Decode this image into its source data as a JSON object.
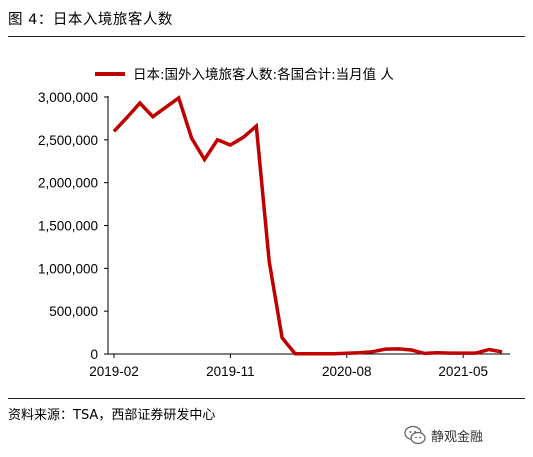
{
  "figure_title": "图 4：日本入境旅客人数",
  "source_note": "资料来源：TSA，西部证券研发中心",
  "watermark": {
    "text": "静观金融",
    "icon": "wechat-logo-icon"
  },
  "colors": {
    "series": "#C00000",
    "axis": "#000000"
  },
  "chart_data": {
    "type": "line",
    "title": "",
    "xlabel": "",
    "ylabel": "",
    "legend": "top",
    "grid": false,
    "ylim": [
      0,
      3000000
    ],
    "yticks": [
      0,
      500000,
      1000000,
      1500000,
      2000000,
      2500000,
      3000000
    ],
    "ytick_labels": [
      "0",
      "500,000",
      "1,000,000",
      "1,500,000",
      "2,000,000",
      "2,500,000",
      "3,000,000"
    ],
    "xtick_labels": [
      "2019-02",
      "2019-11",
      "2020-08",
      "2021-05"
    ],
    "xtick_positions": [
      "2019-02",
      "2019-11",
      "2020-08",
      "2021-05"
    ],
    "series": [
      {
        "name": "日本:国外入境旅客人数:各国合计:当月值 人",
        "x": [
          "2019-02",
          "2019-03",
          "2019-04",
          "2019-05",
          "2019-06",
          "2019-07",
          "2019-08",
          "2019-09",
          "2019-10",
          "2019-11",
          "2019-12",
          "2020-01",
          "2020-02",
          "2020-03",
          "2020-04",
          "2020-05",
          "2020-06",
          "2020-07",
          "2020-08",
          "2020-09",
          "2020-10",
          "2020-11",
          "2020-12",
          "2021-01",
          "2021-02",
          "2021-03",
          "2021-04",
          "2021-05",
          "2021-06",
          "2021-07",
          "2021-08"
        ],
        "values": [
          2600000,
          2760000,
          2930000,
          2770000,
          2880000,
          2990000,
          2520000,
          2270000,
          2500000,
          2440000,
          2530000,
          2660000,
          1080000,
          190000,
          3000,
          2000,
          3000,
          4000,
          9000,
          14000,
          27000,
          57000,
          59000,
          47000,
          7000,
          15000,
          11000,
          10000,
          10000,
          52000,
          25000
        ]
      }
    ]
  }
}
